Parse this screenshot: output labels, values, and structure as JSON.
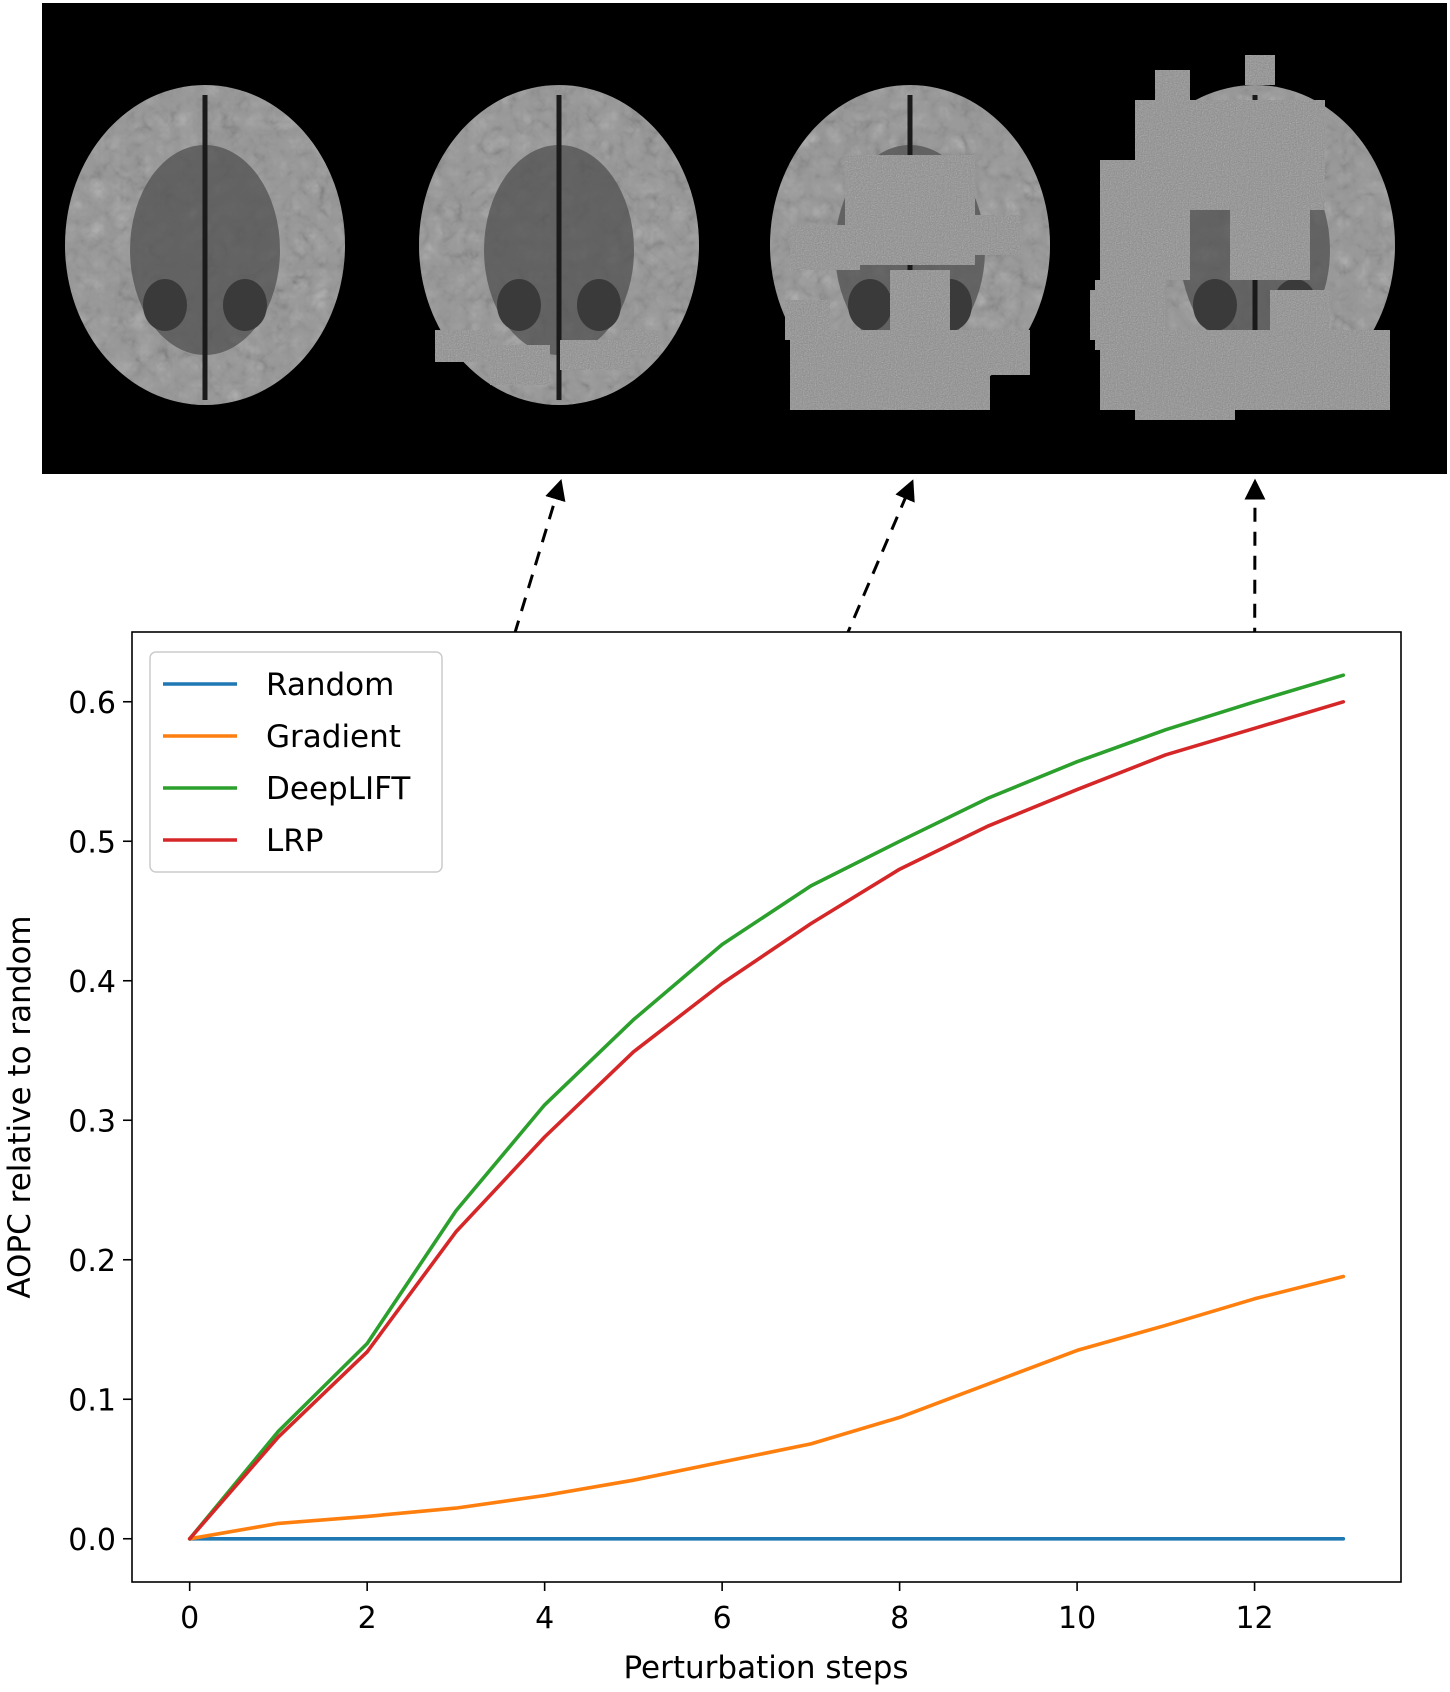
{
  "figure": {
    "panels": [
      {
        "name": "brain-slice-original",
        "perturbed": "none"
      },
      {
        "name": "brain-slice-step-4",
        "perturbed": "low"
      },
      {
        "name": "brain-slice-step-8",
        "perturbed": "medium"
      },
      {
        "name": "brain-slice-step-12",
        "perturbed": "high"
      }
    ],
    "arrows": [
      {
        "from_x": 1,
        "from_y": 0.08,
        "panel": 1
      },
      {
        "from_x": 6,
        "from_y": 0.43,
        "panel": 2
      },
      {
        "from_x": 12,
        "from_y": 0.6,
        "panel": 3
      }
    ]
  },
  "chart_data": {
    "type": "line",
    "title": "",
    "xlabel": "Perturbation steps",
    "ylabel": "AOPC relative to random",
    "xlim": [
      -0.65,
      13.65
    ],
    "ylim": [
      -0.031,
      0.65
    ],
    "xticks": [
      0,
      2,
      4,
      6,
      8,
      10,
      12
    ],
    "xtick_labels": [
      "0",
      "2",
      "4",
      "6",
      "8",
      "10",
      "12"
    ],
    "yticks": [
      0.0,
      0.1,
      0.2,
      0.3,
      0.4,
      0.5,
      0.6
    ],
    "ytick_labels": [
      "0.0",
      "0.1",
      "0.2",
      "0.3",
      "0.4",
      "0.5",
      "0.6"
    ],
    "grid": false,
    "legend_position": "top-left",
    "x": [
      0,
      1,
      2,
      3,
      4,
      5,
      6,
      7,
      8,
      9,
      10,
      11,
      12,
      13
    ],
    "series": [
      {
        "name": "Random",
        "color": "#1f77b4",
        "values": [
          0,
          0,
          0,
          0,
          0,
          0,
          0,
          0,
          0,
          0,
          0,
          0,
          0,
          0
        ]
      },
      {
        "name": "Gradient",
        "color": "#ff7f0e",
        "values": [
          0,
          0.011,
          0.016,
          0.022,
          0.031,
          0.042,
          0.055,
          0.068,
          0.087,
          0.111,
          0.135,
          0.153,
          0.172,
          0.188
        ]
      },
      {
        "name": "DeepLIFT",
        "color": "#2ca02c",
        "values": [
          0,
          0.077,
          0.14,
          0.235,
          0.311,
          0.372,
          0.426,
          0.468,
          0.5,
          0.531,
          0.557,
          0.58,
          0.6,
          0.619
        ]
      },
      {
        "name": "LRP",
        "color": "#d62728",
        "values": [
          0,
          0.073,
          0.134,
          0.22,
          0.288,
          0.349,
          0.398,
          0.441,
          0.48,
          0.511,
          0.537,
          0.562,
          0.581,
          0.6
        ]
      }
    ]
  }
}
